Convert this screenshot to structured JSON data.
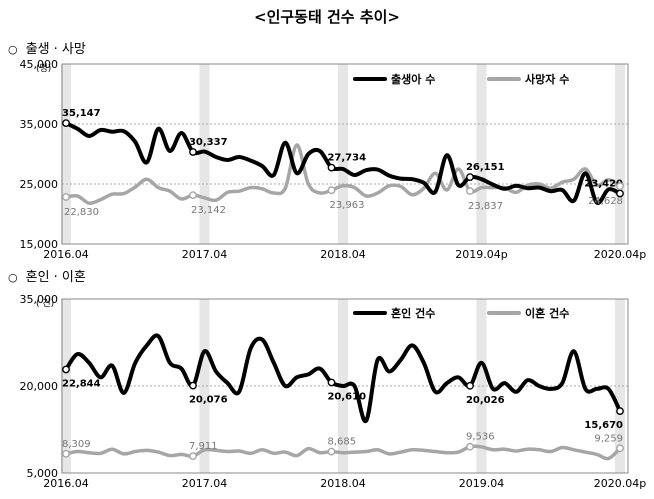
{
  "title": "<인구동태 건수 추이>",
  "sections": [
    {
      "bullet": "○",
      "label": "출생 · 사망"
    },
    {
      "bullet": "○",
      "label": "혼인 · 이혼"
    }
  ],
  "colors": {
    "primary": "#000000",
    "secondary": "#a6a6a6",
    "band": "#e6e6e6",
    "frame": "#888888"
  },
  "chart_data": [
    {
      "type": "line",
      "unit_label": "(명)",
      "ylim": [
        15000,
        45000
      ],
      "y_ticks": [
        15000,
        25000,
        35000,
        45000
      ],
      "y_tick_labels": [
        "15,000",
        "25,000",
        "35,000",
        "45,000"
      ],
      "x_tick_labels": [
        "2016.04",
        "2017.04",
        "2018.04",
        "2019.04p",
        "2020.04p"
      ],
      "x": [
        "2016.04",
        "2016.05",
        "2016.06",
        "2016.07",
        "2016.08",
        "2016.09",
        "2016.10",
        "2016.11",
        "2016.12",
        "2017.01",
        "2017.02",
        "2017.03",
        "2017.04",
        "2017.05",
        "2017.06",
        "2017.07",
        "2017.08",
        "2017.09",
        "2017.10",
        "2017.11",
        "2017.12",
        "2018.01",
        "2018.02",
        "2018.03",
        "2018.04",
        "2018.05",
        "2018.06",
        "2018.07",
        "2018.08",
        "2018.09",
        "2018.10",
        "2018.11",
        "2018.12",
        "2019.01",
        "2019.02",
        "2019.03",
        "2019.04",
        "2019.05",
        "2019.06",
        "2019.07",
        "2019.08",
        "2019.09",
        "2019.10",
        "2019.11",
        "2019.12",
        "2020.01",
        "2020.02",
        "2020.03",
        "2020.04"
      ],
      "legend_position": "top-right",
      "series": [
        {
          "name": "출생아 수",
          "color": "#000000",
          "values": [
            35147,
            34200,
            33000,
            34000,
            33700,
            33800,
            32000,
            28600,
            34200,
            30500,
            33500,
            30337,
            30400,
            29500,
            29000,
            29500,
            28900,
            28000,
            26500,
            31900,
            26800,
            30000,
            30500,
            27734,
            27500,
            26500,
            27300,
            27400,
            26400,
            25900,
            25800,
            25200,
            23700,
            29800,
            24800,
            26151,
            25800,
            24900,
            24200,
            24700,
            24300,
            24400,
            23800,
            24000,
            22200,
            26800,
            21900,
            24100,
            23420
          ],
          "labels": [
            {
              "index": 0,
              "text": "35,147"
            },
            {
              "index": 11,
              "text": "30,337"
            },
            {
              "index": 23,
              "text": "27,734"
            },
            {
              "index": 35,
              "text": "26,151"
            },
            {
              "index": 48,
              "text": "23,420"
            }
          ]
        },
        {
          "name": "사망자 수",
          "color": "#a6a6a6",
          "values": [
            22830,
            23000,
            21800,
            22400,
            23300,
            23400,
            24500,
            25800,
            24400,
            23800,
            22500,
            23142,
            22700,
            22300,
            23600,
            23800,
            24400,
            24200,
            23500,
            24300,
            31500,
            25000,
            23500,
            23963,
            24700,
            24400,
            23000,
            23500,
            24700,
            24600,
            23200,
            24300,
            26800,
            24000,
            27500,
            23837,
            24400,
            24400,
            24400,
            23600,
            24800,
            25000,
            24300,
            25300,
            25800,
            27500,
            24800,
            25700,
            24628
          ],
          "labels": [
            {
              "index": 0,
              "text": "22,830"
            },
            {
              "index": 11,
              "text": "23,142"
            },
            {
              "index": 23,
              "text": "23,963"
            },
            {
              "index": 35,
              "text": "23,837"
            },
            {
              "index": 48,
              "text": "24,628"
            }
          ]
        }
      ]
    },
    {
      "type": "line",
      "unit_label": "( 건)",
      "ylim": [
        5000,
        35000
      ],
      "y_ticks": [
        5000,
        20000,
        35000
      ],
      "y_tick_labels": [
        "5,000",
        "20,000",
        "35,000"
      ],
      "x_tick_labels": [
        "2016.04",
        "2017.04",
        "2018.04",
        "2019.04",
        "2020.04p"
      ],
      "x": [
        "2016.04",
        "2016.05",
        "2016.06",
        "2016.07",
        "2016.08",
        "2016.09",
        "2016.10",
        "2016.11",
        "2016.12",
        "2017.01",
        "2017.02",
        "2017.03",
        "2017.04",
        "2017.05",
        "2017.06",
        "2017.07",
        "2017.08",
        "2017.09",
        "2017.10",
        "2017.11",
        "2017.12",
        "2018.01",
        "2018.02",
        "2018.03",
        "2018.04",
        "2018.05",
        "2018.06",
        "2018.07",
        "2018.08",
        "2018.09",
        "2018.10",
        "2018.11",
        "2018.12",
        "2019.01",
        "2019.02",
        "2019.03",
        "2019.04",
        "2019.05",
        "2019.06",
        "2019.07",
        "2019.08",
        "2019.09",
        "2019.10",
        "2019.11",
        "2019.12",
        "2020.01",
        "2020.02",
        "2020.03",
        "2020.04"
      ],
      "legend_position": "top-right",
      "series": [
        {
          "name": "혼인 건수",
          "color": "#000000",
          "values": [
            22844,
            25500,
            24000,
            21500,
            23500,
            18800,
            24000,
            27000,
            28600,
            24000,
            23000,
            20076,
            26000,
            22500,
            20500,
            19000,
            26500,
            28000,
            24000,
            20000,
            21500,
            22000,
            23000,
            20610,
            20000,
            20000,
            14000,
            24500,
            22500,
            24500,
            27000,
            24000,
            19000,
            20500,
            21500,
            20026,
            24000,
            19500,
            20500,
            19000,
            21000,
            20000,
            19500,
            20500,
            26000,
            19500,
            19500,
            19500,
            15670
          ],
          "labels": [
            {
              "index": 0,
              "text": "22,844"
            },
            {
              "index": 11,
              "text": "20,076"
            },
            {
              "index": 23,
              "text": "20,610"
            },
            {
              "index": 35,
              "text": "20,026"
            },
            {
              "index": 48,
              "text": "15,670"
            }
          ]
        },
        {
          "name": "이혼 건수",
          "color": "#a6a6a6",
          "values": [
            8309,
            8700,
            8500,
            8400,
            9100,
            8300,
            8700,
            8900,
            8600,
            8000,
            8200,
            7911,
            9000,
            8900,
            8700,
            8800,
            8400,
            9000,
            8400,
            8600,
            8000,
            9200,
            8500,
            8685,
            8500,
            8600,
            8700,
            9000,
            8300,
            8600,
            9000,
            8900,
            8700,
            8500,
            8600,
            9536,
            9500,
            9000,
            9100,
            8800,
            9100,
            9000,
            8700,
            9400,
            9000,
            8600,
            8200,
            7500,
            9259
          ],
          "labels": [
            {
              "index": 0,
              "text": "8,309"
            },
            {
              "index": 11,
              "text": "7,911"
            },
            {
              "index": 23,
              "text": "8,685"
            },
            {
              "index": 35,
              "text": "9,536"
            },
            {
              "index": 48,
              "text": "9,259"
            }
          ]
        }
      ]
    }
  ]
}
